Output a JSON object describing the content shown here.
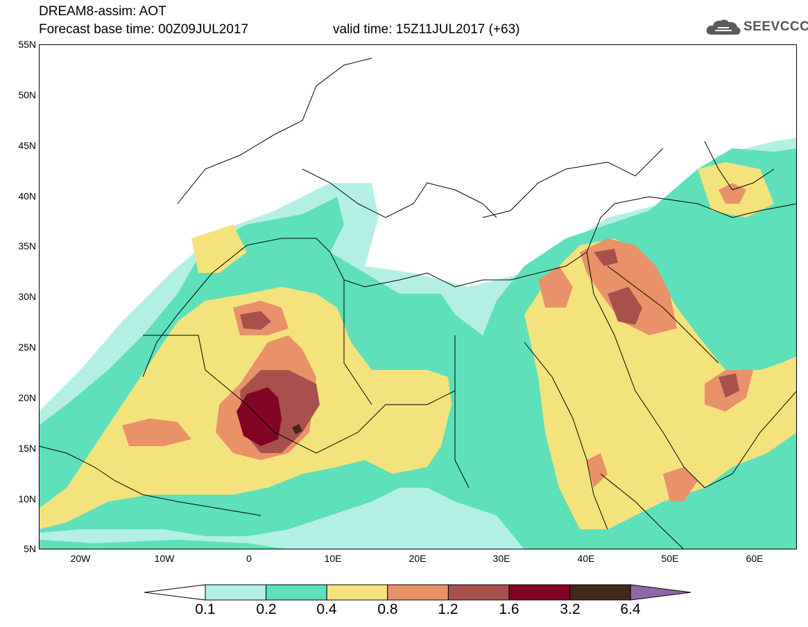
{
  "header": {
    "line1": "DREAM8-assim: AOT",
    "line2": "Forecast base time: 00Z09JUL2017",
    "line3": "valid time: 15Z11JUL2017 (+63)"
  },
  "logo": {
    "text": "SEEVCCC",
    "icon": "cloud-icon"
  },
  "map": {
    "variable": "AOT",
    "lon_range": [
      -25,
      65
    ],
    "lat_range": [
      5,
      55
    ],
    "lat_ticks": [
      "55N",
      "50N",
      "45N",
      "40N",
      "35N",
      "30N",
      "25N",
      "20N",
      "15N",
      "10N",
      "5N"
    ],
    "lon_ticks": [
      "20W",
      "10W",
      "0",
      "10E",
      "20E",
      "30E",
      "40E",
      "50E",
      "60E"
    ]
  },
  "colorbar": {
    "labels": [
      "0.1",
      "0.2",
      "0.4",
      "0.8",
      "1.2",
      "1.6",
      "3.2",
      "6.4"
    ],
    "colors": [
      "#b4efe4",
      "#5ee0bb",
      "#f4e37c",
      "#e9926a",
      "#a8504b",
      "#820425",
      "#432717",
      "#8f67a8"
    ],
    "under_color": "#ffffff",
    "over_color": "#8f67a8"
  }
}
